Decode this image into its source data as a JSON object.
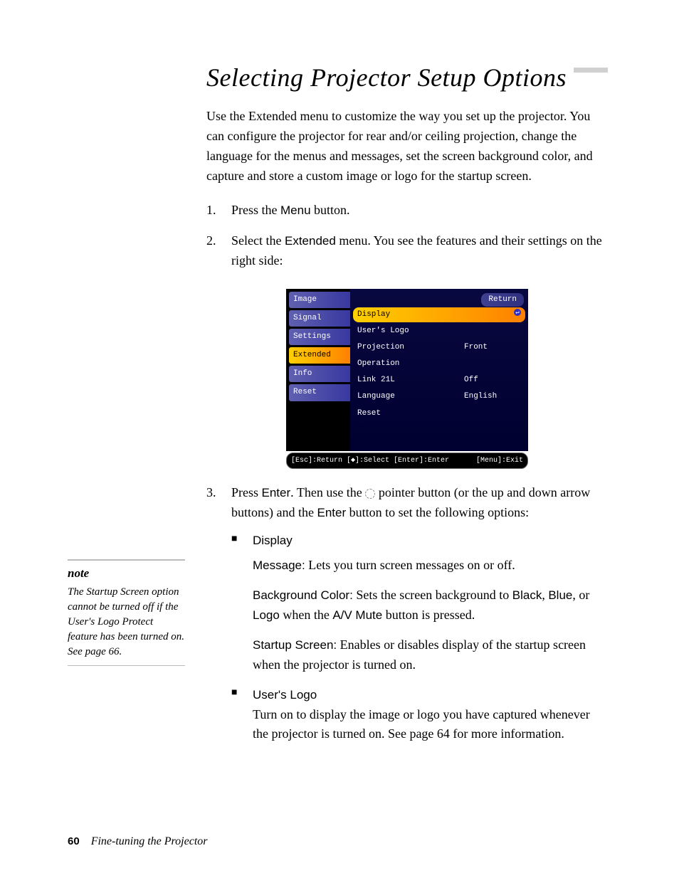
{
  "heading": "Selecting Projector Setup Options",
  "intro": "Use the Extended menu to customize the way you set up the projector. You can configure the projector for rear and/or ceiling projection, change the language for the menus and messages, set the screen background color, and capture and store a custom image or logo for the startup screen.",
  "steps": {
    "s1_num": "1.",
    "s1_pre": "Press the ",
    "s1_term": "Menu",
    "s1_post": " button.",
    "s2_num": "2.",
    "s2_pre": "Select the ",
    "s2_term": "Extended",
    "s2_post": " menu. You see the features and their settings on the right side:",
    "s3_num": "3.",
    "s3_pre": "Press ",
    "s3_term1": "Enter",
    "s3_mid1": ". Then use the ",
    "s3_mid2": " pointer button (or the up and down arrow buttons) and the ",
    "s3_term2": "Enter",
    "s3_post": " button to set the following options:"
  },
  "menu": {
    "tabs": {
      "t0": "Image",
      "t1": "Signal",
      "t2": "Settings",
      "t3": "Extended",
      "t4": "Info",
      "t5": "Reset"
    },
    "return_label": "Return",
    "opts": {
      "o0_label": "Display",
      "o0_val": "",
      "o1_label": "User's Logo",
      "o1_val": "",
      "o2_label": "Projection",
      "o2_val": "Front",
      "o3_label": "Operation",
      "o3_val": "",
      "o4_label": "Link 21L",
      "o4_val": "Off",
      "o5_label": "Language",
      "o5_val": "English",
      "o6_label": "Reset",
      "o6_val": ""
    },
    "footer_left": "[Esc]:Return [◆]:Select [Enter]:Enter",
    "footer_right": "[Menu]:Exit"
  },
  "bullets": {
    "b1_label": "Display",
    "b1_msg_term": "Message:",
    "b1_msg_text": " Lets you turn screen messages on or off.",
    "b1_bg_term": "Background Color:",
    "b1_bg_t1": " Sets the screen background to ",
    "b1_bg_black": "Black",
    "b1_bg_t2": ", ",
    "b1_bg_blue": "Blue",
    "b1_bg_t3": ", or ",
    "b1_bg_logo": "Logo",
    "b1_bg_t4": " when the ",
    "b1_bg_av": "A/V Mute",
    "b1_bg_t5": " button is pressed.",
    "b1_ss_term": "Startup Screen:",
    "b1_ss_text": " Enables or disables display of the startup screen when the projector is turned on.",
    "b2_label": "User's Logo",
    "b2_text": "Turn on to display the image or logo you have captured whenever the projector is turned on. See page 64 for more information."
  },
  "note": {
    "title": "note",
    "body": "The Startup Screen option cannot be turned off if the User's Logo Protect feature has been turned on. See page 66."
  },
  "footer": {
    "page_num": "60",
    "section": "Fine-tuning the Projector"
  },
  "bullet_glyph": "■",
  "enter_glyph": "↵"
}
